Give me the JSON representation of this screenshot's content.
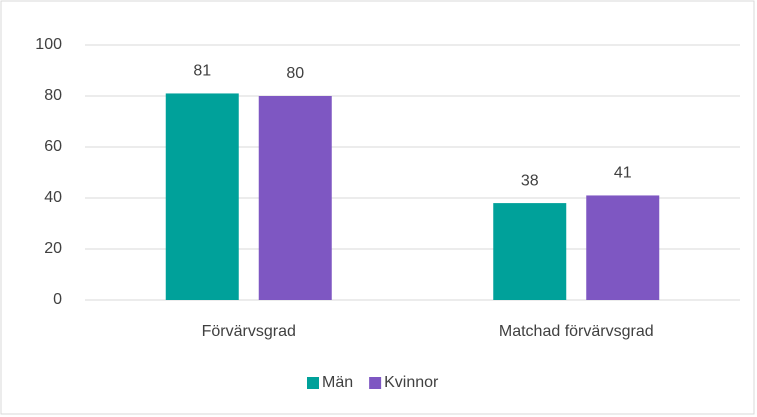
{
  "chart_data": {
    "type": "bar",
    "categories": [
      "Förvärvsgrad",
      "Matchad förvärvsgrad"
    ],
    "series": [
      {
        "name": "Män",
        "color": "#00a19a",
        "values": [
          81,
          38
        ]
      },
      {
        "name": "Kvinnor",
        "color": "#7e57c2",
        "values": [
          80,
          41
        ]
      }
    ],
    "ylim": [
      0,
      100
    ],
    "yticks": [
      0,
      20,
      40,
      60,
      80,
      100
    ],
    "grid": true,
    "legend": "bottom"
  }
}
